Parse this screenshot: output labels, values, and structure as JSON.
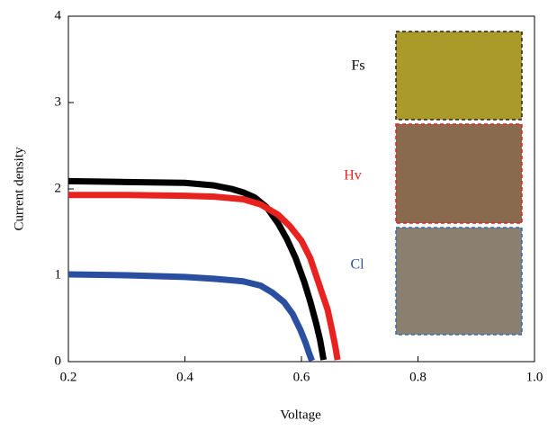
{
  "chart_data": {
    "type": "line",
    "x_label": "Voltage",
    "y_label": "Current density",
    "xlim": [
      0.2,
      1
    ],
    "ylim": [
      0,
      4
    ],
    "xticks": [
      0.2,
      0.4,
      0.6,
      0.8,
      {
        "value": 1,
        "label": "1.0"
      }
    ],
    "yticks": [
      0,
      1,
      2,
      3,
      4
    ],
    "series": [
      {
        "name": "Fs",
        "color": "#000000",
        "x": [
          0.2,
          0.3,
          0.4,
          0.45,
          0.48,
          0.5,
          0.52,
          0.54,
          0.56,
          0.575,
          0.59,
          0.605,
          0.615,
          0.625,
          0.632,
          0.638
        ],
        "values": [
          2.09,
          2.08,
          2.07,
          2.04,
          2.0,
          1.96,
          1.9,
          1.79,
          1.6,
          1.42,
          1.2,
          0.92,
          0.7,
          0.45,
          0.25,
          0.02
        ]
      },
      {
        "name": "Hv",
        "color": "#e8231f",
        "x": [
          0.2,
          0.3,
          0.4,
          0.45,
          0.5,
          0.53,
          0.56,
          0.58,
          0.6,
          0.615,
          0.625,
          0.635,
          0.645,
          0.652,
          0.658,
          0.662
        ],
        "values": [
          1.93,
          1.93,
          1.92,
          1.91,
          1.88,
          1.82,
          1.7,
          1.57,
          1.4,
          1.2,
          1.0,
          0.8,
          0.6,
          0.38,
          0.18,
          0.02
        ]
      },
      {
        "name": "Cl",
        "color": "#2a4fa0",
        "x": [
          0.2,
          0.3,
          0.4,
          0.45,
          0.5,
          0.53,
          0.55,
          0.57,
          0.585,
          0.598,
          0.607,
          0.613,
          0.618
        ],
        "values": [
          1.01,
          1.0,
          0.98,
          0.96,
          0.93,
          0.88,
          0.8,
          0.69,
          0.55,
          0.37,
          0.22,
          0.1,
          0.01
        ]
      }
    ]
  }
}
